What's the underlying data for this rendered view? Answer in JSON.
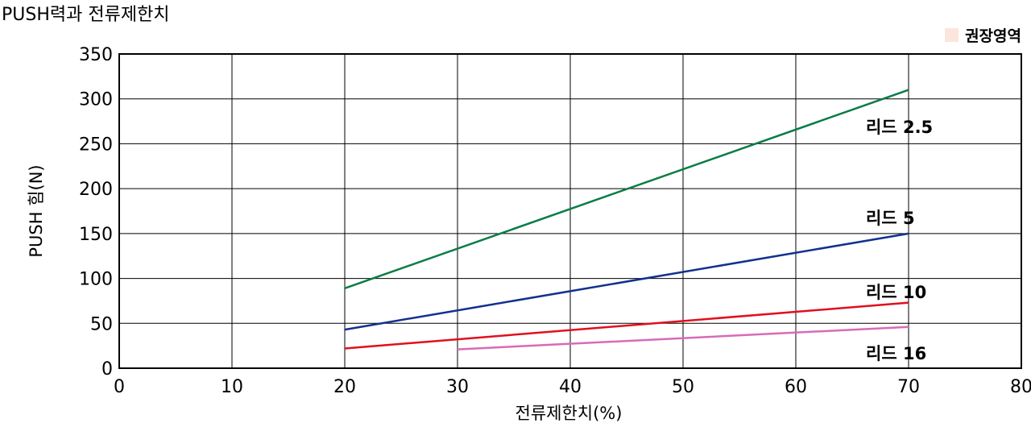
{
  "chart_data": {
    "type": "line",
    "title": "PUSH력과 전류제한치",
    "xlabel": "전류제한치(%)",
    "ylabel": "PUSH 힘(N)",
    "xlim": [
      0,
      80
    ],
    "ylim": [
      0,
      350
    ],
    "x_ticks": [
      0,
      10,
      20,
      30,
      40,
      50,
      60,
      70,
      80
    ],
    "y_ticks": [
      0,
      50,
      100,
      150,
      200,
      250,
      300,
      350
    ],
    "grid": true,
    "legend": {
      "position": "top-right",
      "entries": [
        {
          "label": "권장영역",
          "color": "#fbe5dc"
        }
      ]
    },
    "series": [
      {
        "name": "리드 2.5",
        "color": "#0a7d45",
        "x": [
          20,
          70
        ],
        "values": [
          89,
          310
        ]
      },
      {
        "name": "리드 5",
        "color": "#12318e",
        "x": [
          20,
          70
        ],
        "values": [
          43,
          150
        ]
      },
      {
        "name": "리드 10",
        "color": "#e0101e",
        "x": [
          20,
          70
        ],
        "values": [
          22,
          73
        ]
      },
      {
        "name": "리드 16",
        "color": "#d96ab8",
        "x": [
          30,
          70
        ],
        "values": [
          21,
          46
        ]
      }
    ]
  }
}
